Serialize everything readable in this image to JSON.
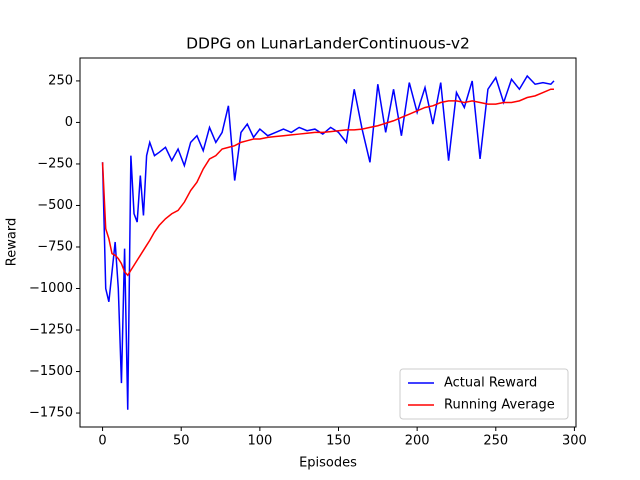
{
  "chart_data": {
    "type": "line",
    "title": "DDPG on LunarLanderContinuous-v2",
    "xlabel": "Episodes",
    "ylabel": "Reward",
    "x": [
      0,
      2,
      4,
      6,
      8,
      10,
      12,
      14,
      16,
      18,
      20,
      22,
      24,
      26,
      28,
      30,
      33,
      36,
      40,
      44,
      48,
      52,
      56,
      60,
      64,
      68,
      72,
      76,
      80,
      84,
      88,
      92,
      96,
      100,
      105,
      110,
      115,
      120,
      125,
      130,
      135,
      140,
      145,
      150,
      155,
      160,
      165,
      170,
      175,
      180,
      185,
      190,
      195,
      200,
      205,
      210,
      215,
      220,
      225,
      230,
      235,
      240,
      245,
      250,
      255,
      260,
      265,
      270,
      275,
      280,
      285,
      287
    ],
    "series": [
      {
        "name": "Actual Reward",
        "color": "#0000ff",
        "values": [
          -240,
          -1000,
          -1080,
          -900,
          -720,
          -1000,
          -1570,
          -760,
          -1730,
          -200,
          -550,
          -600,
          -320,
          -560,
          -200,
          -120,
          -200,
          -180,
          -150,
          -230,
          -160,
          -260,
          -120,
          -80,
          -170,
          -30,
          -120,
          -60,
          100,
          -350,
          -60,
          -10,
          -90,
          -40,
          -80,
          -60,
          -40,
          -60,
          -30,
          -50,
          -40,
          -70,
          -30,
          -60,
          -120,
          200,
          -40,
          -240,
          230,
          -60,
          200,
          -80,
          240,
          60,
          210,
          -10,
          240,
          -230,
          180,
          90,
          250,
          -220,
          200,
          270,
          120,
          260,
          200,
          280,
          230,
          240,
          230,
          250
        ]
      },
      {
        "name": "Running Average",
        "color": "#ff0000",
        "values": [
          -240,
          -640,
          -700,
          -790,
          -800,
          -820,
          -850,
          -900,
          -920,
          -890,
          -860,
          -830,
          -800,
          -770,
          -740,
          -710,
          -660,
          -620,
          -580,
          -550,
          -530,
          -480,
          -410,
          -360,
          -280,
          -220,
          -200,
          -160,
          -150,
          -140,
          -120,
          -110,
          -100,
          -100,
          -90,
          -85,
          -80,
          -75,
          -70,
          -65,
          -60,
          -60,
          -55,
          -50,
          -45,
          -45,
          -40,
          -30,
          -20,
          -5,
          10,
          30,
          50,
          70,
          90,
          100,
          120,
          130,
          130,
          120,
          130,
          120,
          110,
          110,
          120,
          120,
          130,
          150,
          160,
          180,
          200,
          200
        ]
      }
    ],
    "xlim": [
      -14.35,
      301
    ],
    "ylim": [
      -1834,
      388
    ],
    "xticks": [
      0,
      50,
      100,
      150,
      200,
      250,
      300
    ],
    "yticks": [
      {
        "value": -1750,
        "label": "−1750"
      },
      {
        "value": -1500,
        "label": "−1500"
      },
      {
        "value": -1250,
        "label": "−1250"
      },
      {
        "value": -1000,
        "label": "−1000"
      },
      {
        "value": -750,
        "label": "−750"
      },
      {
        "value": -500,
        "label": "−500"
      },
      {
        "value": -250,
        "label": "−250"
      },
      0,
      250
    ],
    "legend": "lower right"
  }
}
